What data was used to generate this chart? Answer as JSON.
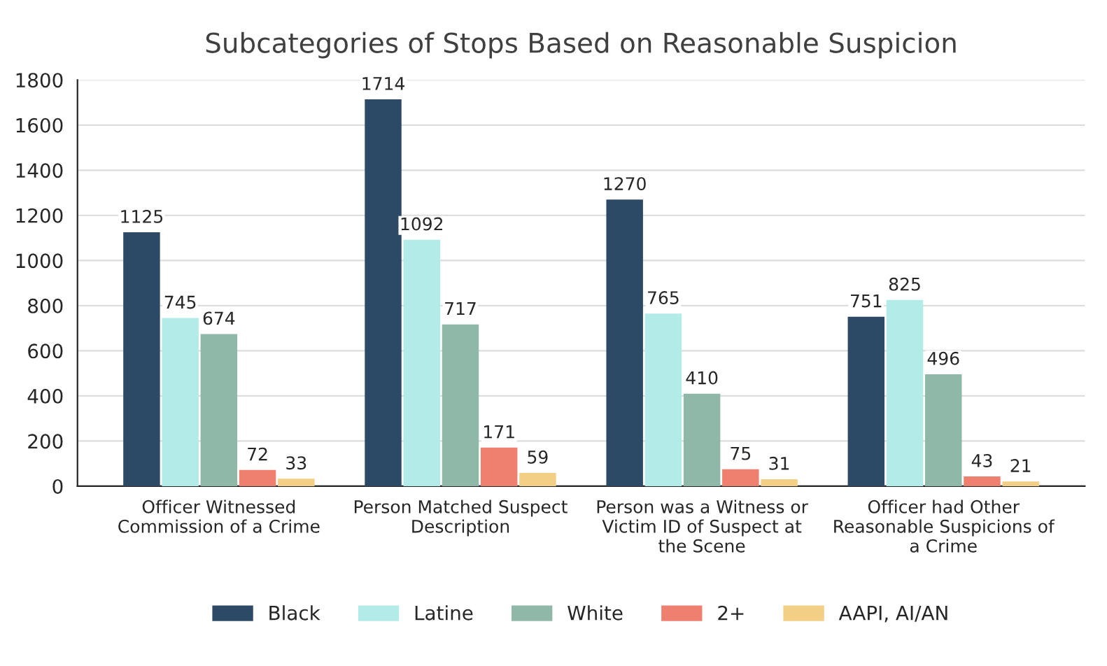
{
  "chart_data": {
    "type": "bar",
    "title": "Subcategories of Stops Based on Reasonable Suspicion",
    "categories": [
      "Officer Witnessed\nCommission of a Crime",
      "Person Matched Suspect\nDescription",
      "Person was a Witness or\nVictim ID of Suspect at\nthe Scene",
      "Officer had Other\nReasonable Suspicions of\na Crime"
    ],
    "series": [
      {
        "name": "Black",
        "color": "#2c4a66",
        "values": [
          1125,
          1714,
          1270,
          751
        ]
      },
      {
        "name": "Latine",
        "color": "#b2ebe8",
        "values": [
          745,
          1092,
          765,
          825
        ]
      },
      {
        "name": "White",
        "color": "#8fb8a8",
        "values": [
          674,
          717,
          410,
          496
        ]
      },
      {
        "name": "2+",
        "color": "#ef8070",
        "values": [
          72,
          171,
          75,
          43
        ]
      },
      {
        "name": "AAPI, AI/AN",
        "color": "#f3cf86",
        "values": [
          33,
          59,
          31,
          21
        ]
      }
    ],
    "ylim": [
      0,
      1800
    ],
    "yticks": [
      0,
      200,
      400,
      600,
      800,
      1000,
      1200,
      1400,
      1600,
      1800
    ],
    "grid": "y",
    "legend": "bottom",
    "data_labels": true
  }
}
